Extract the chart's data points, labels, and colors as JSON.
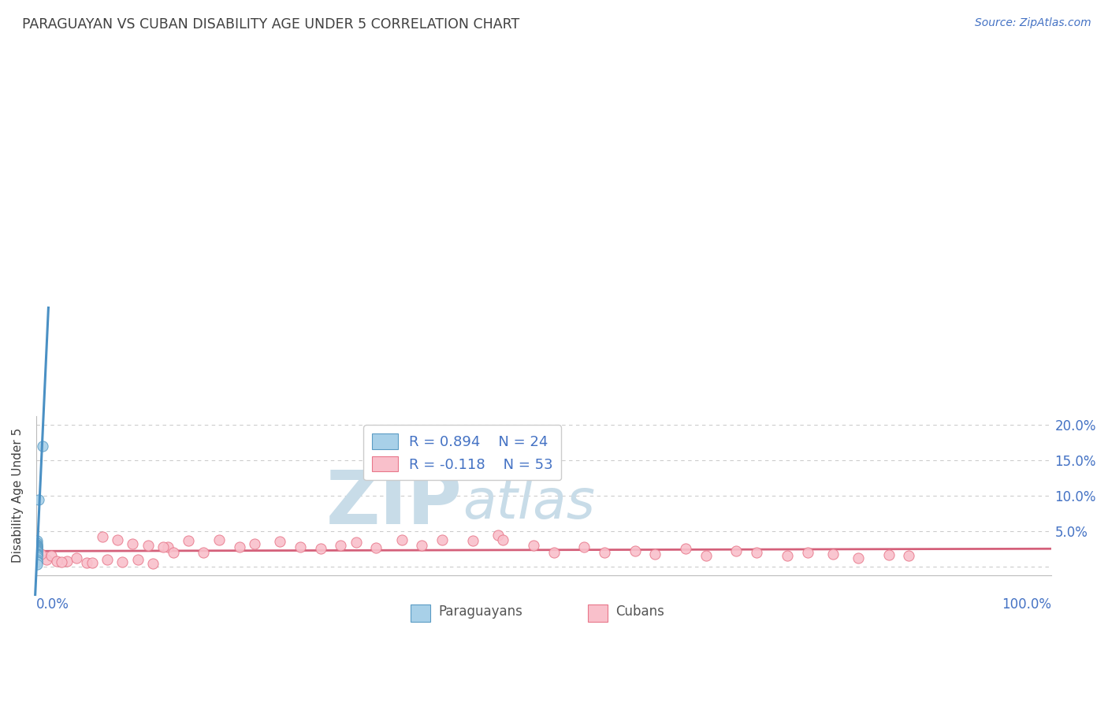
{
  "title": "PARAGUAYAN VS CUBAN DISABILITY AGE UNDER 5 CORRELATION CHART",
  "source_text": "Source: ZipAtlas.com",
  "ylabel": "Disability Age Under 5",
  "yticks": [
    0.0,
    0.05,
    0.1,
    0.15,
    0.2
  ],
  "ytick_labels_right": [
    "",
    "5.0%",
    "10.0%",
    "15.0%",
    "20.0%"
  ],
  "xlim": [
    0.0,
    1.0
  ],
  "ylim": [
    -0.012,
    0.212
  ],
  "paraguayan_x": [
    0.006,
    0.002,
    0.001,
    0.001,
    0.001,
    0.001,
    0.001,
    0.001,
    0.001,
    0.001,
    0.001,
    0.001,
    0.001,
    0.001,
    0.001,
    0.001,
    0.001,
    0.001,
    0.001,
    0.001,
    0.001,
    0.001,
    0.001,
    0.001
  ],
  "paraguayan_y": [
    0.17,
    0.094,
    0.036,
    0.033,
    0.031,
    0.03,
    0.029,
    0.028,
    0.027,
    0.026,
    0.025,
    0.024,
    0.023,
    0.022,
    0.021,
    0.019,
    0.018,
    0.016,
    0.015,
    0.013,
    0.01,
    0.008,
    0.006,
    0.003
  ],
  "cuban_x": [
    0.01,
    0.03,
    0.05,
    0.065,
    0.08,
    0.095,
    0.11,
    0.13,
    0.15,
    0.165,
    0.18,
    0.2,
    0.215,
    0.24,
    0.26,
    0.28,
    0.3,
    0.315,
    0.335,
    0.36,
    0.38,
    0.4,
    0.43,
    0.455,
    0.46,
    0.49,
    0.51,
    0.54,
    0.56,
    0.59,
    0.61,
    0.64,
    0.66,
    0.69,
    0.71,
    0.74,
    0.76,
    0.785,
    0.81,
    0.84,
    0.86,
    0.005,
    0.015,
    0.02,
    0.025,
    0.04,
    0.055,
    0.07,
    0.085,
    0.1,
    0.115,
    0.125,
    0.135
  ],
  "cuban_y": [
    0.01,
    0.008,
    0.005,
    0.042,
    0.038,
    0.032,
    0.03,
    0.028,
    0.036,
    0.02,
    0.038,
    0.028,
    0.032,
    0.035,
    0.028,
    0.025,
    0.03,
    0.034,
    0.026,
    0.038,
    0.03,
    0.038,
    0.036,
    0.044,
    0.038,
    0.03,
    0.02,
    0.028,
    0.02,
    0.022,
    0.018,
    0.025,
    0.015,
    0.022,
    0.02,
    0.015,
    0.02,
    0.018,
    0.012,
    0.016,
    0.015,
    0.018,
    0.015,
    0.008,
    0.006,
    0.012,
    0.005,
    0.01,
    0.006,
    0.01,
    0.004,
    0.028,
    0.02
  ],
  "paraguayan_color": "#a8d0e8",
  "cuban_color": "#f9c0cb",
  "paraguayan_edge_color": "#5b9cc4",
  "cuban_edge_color": "#e8778a",
  "paraguayan_line_color": "#4a90c4",
  "cuban_line_color": "#d4607a",
  "legend_R1": "R = 0.894",
  "legend_N1": "N = 24",
  "legend_R2": "R = -0.118",
  "legend_N2": "N = 53",
  "watermark_zip": "ZIP",
  "watermark_atlas": "atlas",
  "watermark_color": "#c8dce8",
  "background_color": "#ffffff",
  "grid_color": "#cccccc",
  "title_color": "#404040",
  "source_color": "#4472c4",
  "ylabel_color": "#404040",
  "tick_label_color": "#4472c4",
  "legend_text_color": "#4472c4",
  "bottom_legend_color": "#555555"
}
